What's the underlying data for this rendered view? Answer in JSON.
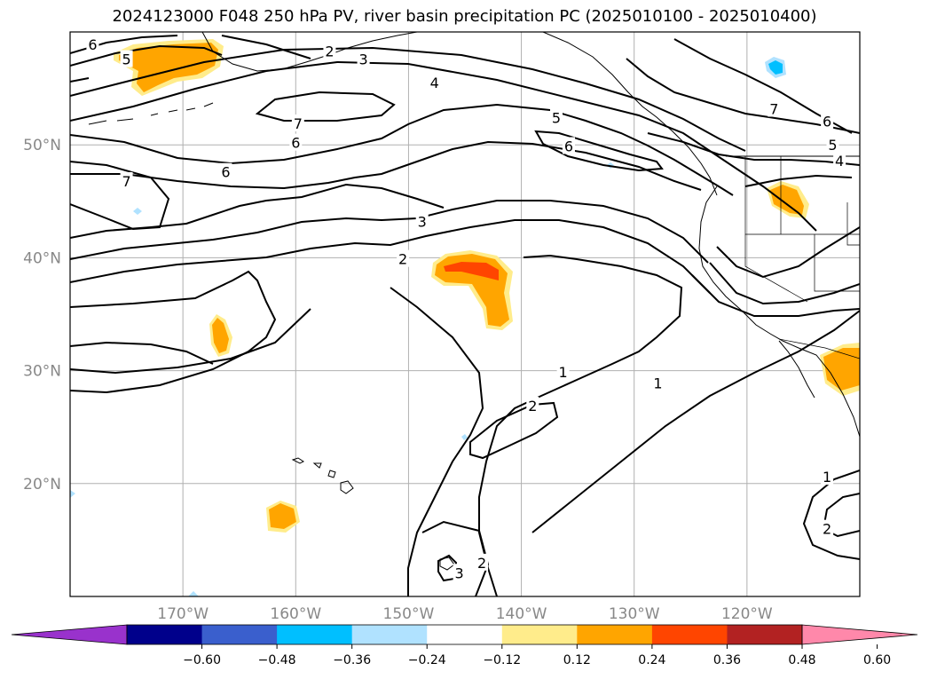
{
  "title": "2024123000 F048 250 hPa PV, river basin precipitation PC (2025010100 - 2025010400)",
  "map": {
    "projection": "plate-carree",
    "lon_range": [
      -180,
      -110
    ],
    "lat_range": [
      10,
      60
    ],
    "gridlines": true,
    "lat_ticks": [
      {
        "value": 20,
        "label": "20°N"
      },
      {
        "value": 30,
        "label": "30°N"
      },
      {
        "value": 40,
        "label": "40°N"
      },
      {
        "value": 50,
        "label": "50°N"
      }
    ],
    "lon_ticks": [
      {
        "value": -170,
        "label": "170°W"
      },
      {
        "value": -160,
        "label": "160°W"
      },
      {
        "value": -150,
        "label": "150°W"
      },
      {
        "value": -140,
        "label": "140°W"
      },
      {
        "value": -130,
        "label": "130°W"
      },
      {
        "value": -120,
        "label": "120°W"
      }
    ]
  },
  "contour_labels": [
    {
      "text": "6",
      "lon": -178,
      "lat": 58.9
    },
    {
      "text": "5",
      "lon": -175,
      "lat": 57.6
    },
    {
      "text": "2",
      "lon": -157,
      "lat": 58.3
    },
    {
      "text": "3",
      "lon": -154,
      "lat": 57.6
    },
    {
      "text": "4",
      "lon": -147.7,
      "lat": 55.5
    },
    {
      "text": "5",
      "lon": -136.9,
      "lat": 52.4
    },
    {
      "text": "7",
      "lon": -159.8,
      "lat": 51.9
    },
    {
      "text": "6",
      "lon": -160,
      "lat": 50.2
    },
    {
      "text": "6",
      "lon": -135.8,
      "lat": 49.9
    },
    {
      "text": "7",
      "lon": -175,
      "lat": 46.8
    },
    {
      "text": "6",
      "lon": -166.2,
      "lat": 47.6
    },
    {
      "text": "3",
      "lon": -148.8,
      "lat": 43.2
    },
    {
      "text": "2",
      "lon": -150.5,
      "lat": 39.9
    },
    {
      "text": "1",
      "lon": -136.3,
      "lat": 29.9
    },
    {
      "text": "1",
      "lon": -127.9,
      "lat": 28.9
    },
    {
      "text": "2",
      "lon": -139,
      "lat": 26.9
    },
    {
      "text": "7",
      "lon": -117.6,
      "lat": 53.2
    },
    {
      "text": "6",
      "lon": -112.9,
      "lat": 52.1
    },
    {
      "text": "5",
      "lon": -112.4,
      "lat": 50
    },
    {
      "text": "4",
      "lon": -111.8,
      "lat": 48.6
    },
    {
      "text": "1",
      "lon": -112.9,
      "lat": 20.6
    },
    {
      "text": "2",
      "lon": -112.9,
      "lat": 16
    },
    {
      "text": "2",
      "lon": -143.5,
      "lat": 13
    },
    {
      "text": "3",
      "lon": -145.5,
      "lat": 12.1
    }
  ],
  "colorbar": {
    "colors": [
      "#9932cc",
      "#00008b",
      "#3a5fcd",
      "#00bfff",
      "#b0e2ff",
      "#ffffff",
      "#ffec8b",
      "#ffa500",
      "#ff4500",
      "#b22222",
      "#ff88aa"
    ],
    "ticks": [
      "−0.60",
      "−0.48",
      "−0.36",
      "−0.24",
      "−0.12",
      "0.12",
      "0.24",
      "0.36",
      "0.48",
      "0.60"
    ],
    "extend": "both"
  }
}
